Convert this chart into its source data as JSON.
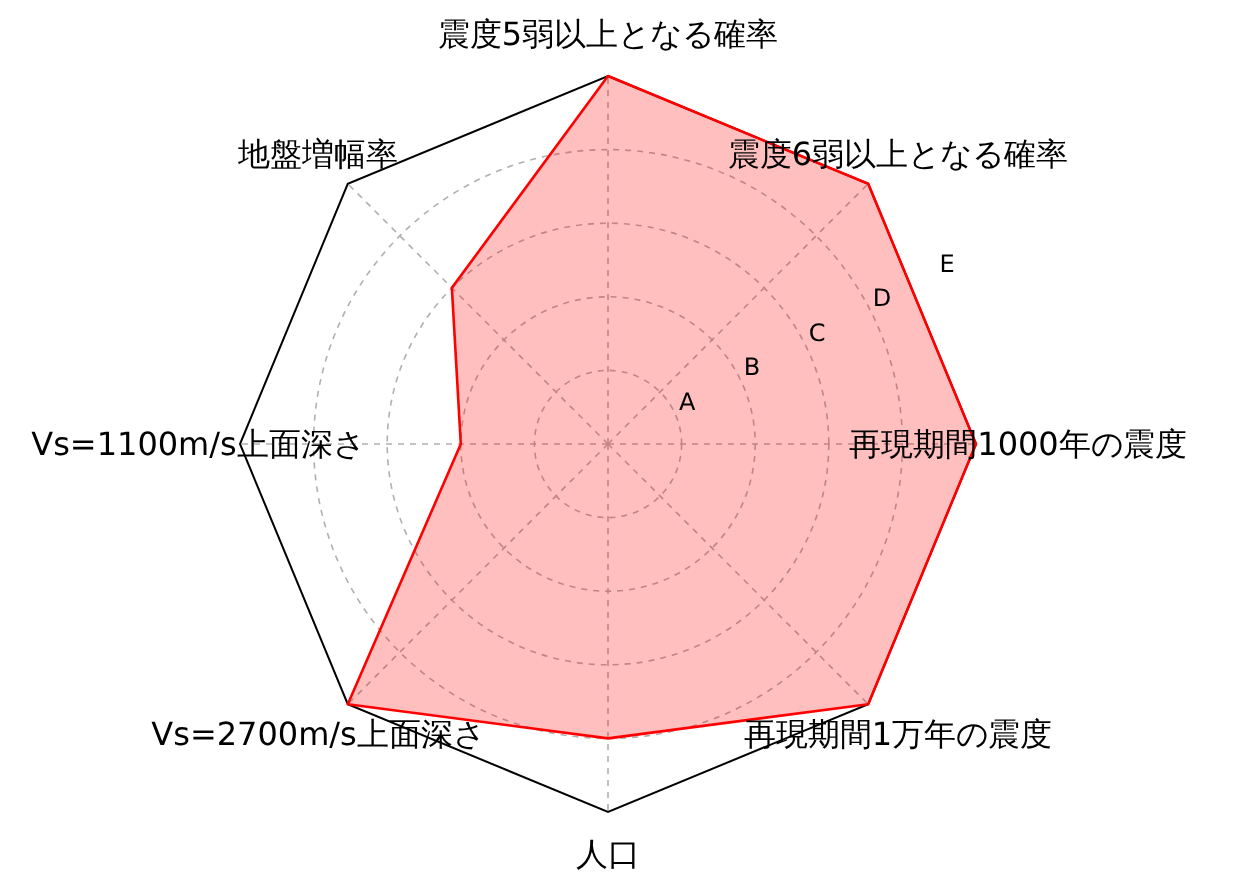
{
  "chart_data": {
    "type": "radar",
    "categories": [
      "震度5弱以上となる確率",
      "震度6弱以上となる確率",
      "再現期間1000年の震度",
      "再現期間1万年の震度",
      "人口",
      "Vs=2700m/s上面深さ",
      "Vs=1100m/s上面深さ",
      "地盤増幅率"
    ],
    "series": [
      {
        "color": "#ff0000",
        "values": [
          5,
          5,
          5,
          5,
          4,
          5,
          2,
          3
        ]
      }
    ],
    "ylim": [
      0,
      5
    ],
    "yticks": [
      {
        "value": 1,
        "label": "A"
      },
      {
        "value": 2,
        "label": "B"
      },
      {
        "value": 3,
        "label": "C"
      },
      {
        "value": 4,
        "label": "D"
      },
      {
        "value": 5,
        "label": "E"
      }
    ],
    "grid": true
  }
}
